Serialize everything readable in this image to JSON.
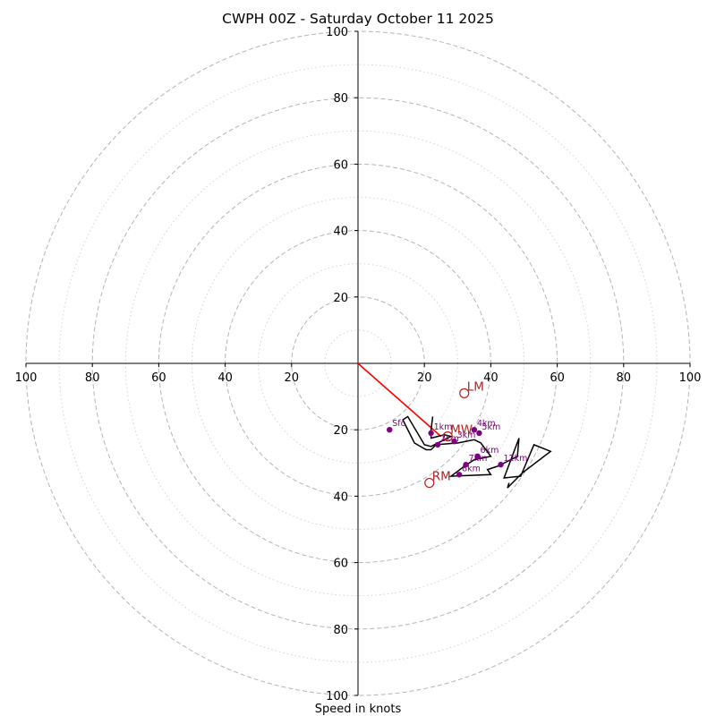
{
  "chart_data": {
    "type": "hodograph",
    "title": "CWPH 00Z - Saturday October 11 2025",
    "xlabel": "Speed in knots",
    "ylabel": "",
    "xlim": [
      -100,
      100
    ],
    "ylim": [
      -100,
      100
    ],
    "y_axis_direction": "down-positive",
    "ring_speeds_major": [
      20,
      40,
      60,
      80,
      100
    ],
    "ring_speeds_minor": [
      10,
      30,
      50,
      70,
      90
    ],
    "x_tick_labels": [
      "100",
      "80",
      "60",
      "40",
      "20",
      "20",
      "40",
      "60",
      "80",
      "100"
    ],
    "x_tick_values": [
      -100,
      -80,
      -60,
      -40,
      -20,
      20,
      40,
      60,
      80,
      100
    ],
    "y_tick_labels": [
      "100",
      "80",
      "60",
      "40",
      "20",
      "20",
      "40",
      "60",
      "80",
      "100"
    ],
    "y_tick_values": [
      -100,
      -80,
      -60,
      -40,
      -20,
      20,
      40,
      60,
      80,
      100
    ],
    "hodograph_trace": [
      [
        22.5,
        16
      ],
      [
        22,
        20
      ],
      [
        22,
        22.5
      ],
      [
        26,
        21.5
      ],
      [
        28,
        22
      ],
      [
        25,
        23.5
      ],
      [
        22,
        25
      ],
      [
        20,
        24.5
      ],
      [
        15,
        16
      ],
      [
        13.5,
        17
      ],
      [
        17,
        24
      ],
      [
        20.5,
        26
      ],
      [
        22,
        26
      ],
      [
        23.5,
        24.5
      ],
      [
        30,
        24
      ],
      [
        35,
        23
      ],
      [
        37,
        24
      ],
      [
        40,
        28
      ],
      [
        35,
        29
      ],
      [
        32,
        31
      ],
      [
        28,
        34
      ],
      [
        40,
        33.5
      ],
      [
        39,
        32
      ],
      [
        42,
        31
      ],
      [
        48,
        28
      ],
      [
        48.5,
        22.5
      ],
      [
        44,
        34.5
      ],
      [
        49,
        34
      ],
      [
        53,
        24.5
      ],
      [
        58,
        26.5
      ],
      [
        49.5,
        33
      ],
      [
        45,
        37.5
      ],
      [
        45.5,
        36
      ]
    ],
    "height_markers": [
      {
        "label": "Sfc",
        "u": 9.5,
        "v": 20
      },
      {
        "label": "1km",
        "u": 22,
        "v": 21
      },
      {
        "label": "2km",
        "u": 24,
        "v": 24.5
      },
      {
        "label": "3km",
        "u": 29,
        "v": 23.5
      },
      {
        "label": "4km",
        "u": 35,
        "v": 20
      },
      {
        "label": "5km",
        "u": 36.5,
        "v": 21
      },
      {
        "label": "6km",
        "u": 36,
        "v": 28
      },
      {
        "label": "7km",
        "u": 32.5,
        "v": 30.5
      },
      {
        "label": "8km",
        "u": 30.5,
        "v": 33.5
      },
      {
        "label": "12km",
        "u": 43,
        "v": 30.5
      }
    ],
    "storm_motions": [
      {
        "label": "LM",
        "u": 32,
        "v": 9
      },
      {
        "label": "MW",
        "u": 27,
        "v": 22
      },
      {
        "label": "RM",
        "u": 21.5,
        "v": 36
      }
    ],
    "shear_vector": {
      "from": [
        0,
        0
      ],
      "to": [
        25,
        22
      ]
    },
    "colors": {
      "ring_major": "#b4b4b4",
      "ring_minor": "#d2d2d2",
      "axis": "#000000",
      "trace": "#000000",
      "height_marker": "#800080",
      "storm_motion": "#b22222",
      "shear_vector": "#ff0000"
    }
  }
}
